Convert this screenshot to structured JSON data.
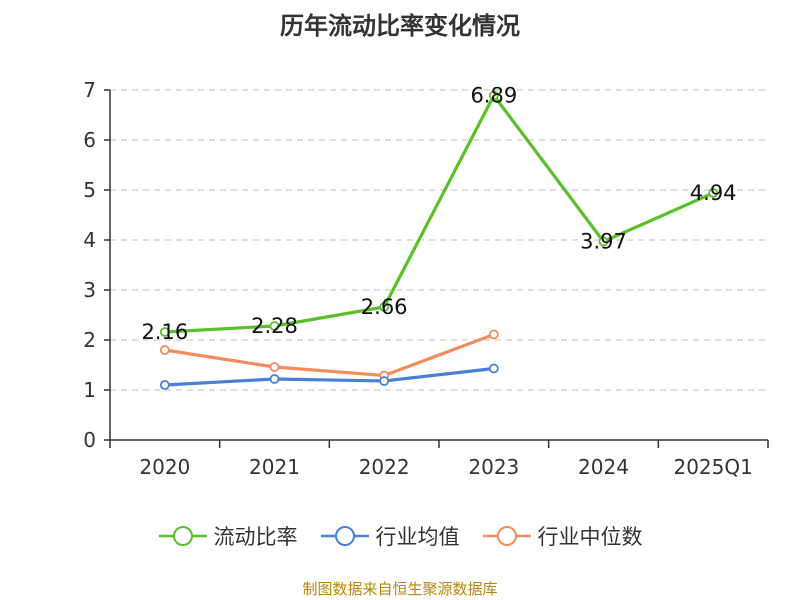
{
  "chart_data": {
    "type": "line",
    "title": "历年流动比率变化情况",
    "categories": [
      "2020",
      "2021",
      "2022",
      "2023",
      "2024",
      "2025Q1"
    ],
    "ylim": [
      0,
      7
    ],
    "yticks": [
      "0",
      "1",
      "2",
      "3",
      "4",
      "5",
      "6",
      "7"
    ],
    "grid": true,
    "legend_position": "bottom",
    "series": [
      {
        "name": "流动比率",
        "color": "#5cbf2a",
        "values": [
          2.16,
          2.28,
          2.66,
          6.89,
          3.97,
          4.94
        ],
        "labels": [
          "2.16",
          "2.28",
          "2.66",
          "6.89",
          "3.97",
          "4.94"
        ]
      },
      {
        "name": "行业均值",
        "color": "#4a7fd9",
        "values": [
          1.1,
          1.22,
          1.18,
          1.43,
          null,
          null
        ]
      },
      {
        "name": "行业中位数",
        "color": "#f28c5c",
        "values": [
          1.8,
          1.46,
          1.29,
          2.11,
          null,
          null
        ]
      }
    ]
  },
  "footer": {
    "source": "制图数据来自恒生聚源数据库"
  }
}
